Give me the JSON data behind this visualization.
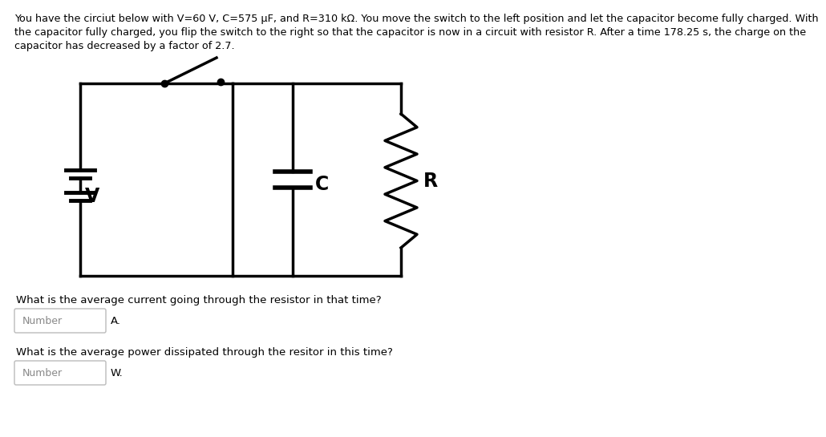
{
  "background_color": "#ffffff",
  "text_color": "#000000",
  "title_text": "You have the circiut below with V=60 V, C=575 μF, and R=310 kΩ. You move the switch to the left position and let the capacitor become fully charged. With\nthe capacitor fully charged, you flip the switch to the right so that the capacitor is now in a circuit with resistor R. After a time 178.25 s, the charge on the\ncapacitor has decreased by a factor of 2.7.",
  "title_fontsize": 9.2,
  "question1": "What is the average current going through the resistor in that time?",
  "question2": "What is the average power dissipated through the resitor in this time?",
  "label_V": "V",
  "label_C": "C",
  "label_R": "R",
  "number_label": "Number",
  "unit1": "A.",
  "unit2": "W.",
  "box_color": "#000000",
  "line_width": 2.5
}
